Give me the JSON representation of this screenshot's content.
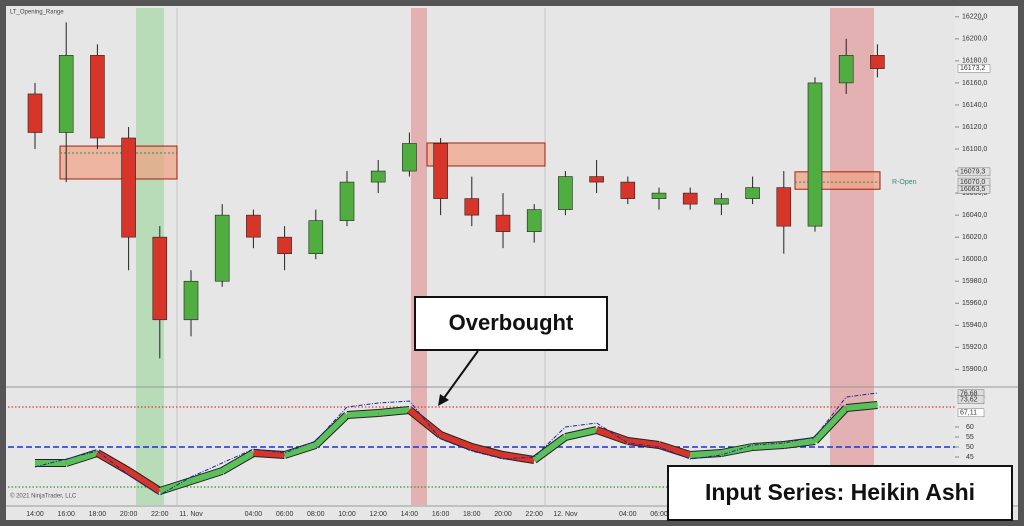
{
  "chart_data": [
    {
      "type": "candlestick",
      "title": "LT_Opening_Range",
      "categories": [
        "14:00",
        "16:00",
        "18:00",
        "20:00",
        "22:00",
        "11. Nov",
        null,
        "04:00",
        "06:00",
        "08:00",
        "10:00",
        "12:00",
        "14:00",
        "16:00",
        "18:00",
        "20:00",
        "22:00",
        "12. Nov",
        null,
        "04:00",
        "06:00",
        "08:00",
        null,
        null,
        null,
        null,
        null,
        null
      ],
      "open": [
        16150,
        16115,
        16185,
        16110,
        16020,
        15945,
        15980,
        16040,
        16020,
        16005,
        16035,
        16070,
        16080,
        16105,
        16055,
        16040,
        16025,
        16045,
        16075,
        16070,
        16055,
        16060,
        16050,
        16055,
        16065,
        16030,
        16160,
        16185
      ],
      "high": [
        16160,
        16215,
        16195,
        16120,
        16030,
        15990,
        16050,
        16045,
        16030,
        16045,
        16080,
        16090,
        16115,
        16110,
        16075,
        16060,
        16050,
        16080,
        16090,
        16075,
        16065,
        16065,
        16060,
        16075,
        16080,
        16165,
        16200,
        16195
      ],
      "low": [
        16100,
        16070,
        16100,
        15990,
        15910,
        15930,
        15975,
        16010,
        15990,
        16000,
        16030,
        16060,
        16075,
        16040,
        16030,
        16010,
        16015,
        16040,
        16060,
        16050,
        16045,
        16045,
        16040,
        16050,
        16005,
        16025,
        16150,
        16165
      ],
      "close": [
        16115,
        16185,
        16110,
        16020,
        15945,
        15980,
        16040,
        16020,
        16005,
        16035,
        16070,
        16080,
        16105,
        16055,
        16040,
        16025,
        16045,
        16075,
        16070,
        16055,
        16060,
        16050,
        16055,
        16065,
        16030,
        16160,
        16185,
        16173
      ],
      "up_color": "#4fae3f",
      "down_color": "#d8352a",
      "ylim": [
        15884,
        16228
      ],
      "yticks": [
        {
          "value": 15900,
          "label": "15900,0"
        },
        {
          "value": 15920,
          "label": "15920,0"
        },
        {
          "value": 15940,
          "label": "15940,0"
        },
        {
          "value": 15960,
          "label": "15960,0"
        },
        {
          "value": 15980,
          "label": "15980,0"
        },
        {
          "value": 16000,
          "label": "16000,0"
        },
        {
          "value": 16020,
          "label": "16020,0"
        },
        {
          "value": 16040,
          "label": "16040,0"
        },
        {
          "value": 16060,
          "label": "16060,0"
        },
        {
          "value": 16080,
          "label": "16080,0"
        },
        {
          "value": 16100,
          "label": "16100,0"
        },
        {
          "value": 16120,
          "label": "16120,0"
        },
        {
          "value": 16140,
          "label": "16140,0"
        },
        {
          "value": 16160,
          "label": "16160,0"
        },
        {
          "value": 16180,
          "label": "16180,0"
        },
        {
          "value": 16200,
          "label": "16200,0"
        },
        {
          "value": 16220,
          "label": "16220,0"
        }
      ],
      "price_tags": [
        {
          "value": 16173.2,
          "label": "16173,2"
        },
        {
          "value": 16079.3,
          "label": "16079,3"
        },
        {
          "value": 16070.0,
          "label": "16070,0"
        },
        {
          "value": 16063.5,
          "label": "16063,5"
        }
      ],
      "ranges": [
        {
          "high": 16102.7,
          "low": 16072.8,
          "mid": 16096.4
        },
        {
          "high": 16105.5,
          "low": 16084.6
        },
        {
          "high": 16079.3,
          "low": 16063.5,
          "mid": 16070.0
        }
      ],
      "range_label": "R-Open"
    },
    {
      "type": "line",
      "values": [
        42,
        42,
        47,
        38,
        28,
        33,
        38,
        47,
        46,
        51,
        66,
        67,
        68.5,
        56,
        50,
        46,
        43.5,
        55,
        58.5,
        53,
        51,
        46,
        47,
        50,
        51,
        53,
        69.5,
        71
      ],
      "signal_values": [
        40,
        44,
        48,
        36,
        26,
        35,
        42,
        49,
        47,
        53,
        70,
        72,
        73,
        54,
        48,
        44,
        45,
        60,
        62,
        52,
        50,
        44,
        46,
        51,
        52,
        55,
        75,
        77
      ],
      "up_color": "#5cc05a",
      "down_color": "#d8352a",
      "signal_color": "#1a2a9a",
      "levels": [
        {
          "value": 70,
          "color": "#e33"
        },
        {
          "value": 50,
          "color": "#1833d8"
        },
        {
          "value": 30,
          "color": "#2a9a2a"
        }
      ],
      "ylim": [
        23.5,
        79.5
      ],
      "yticks": [
        45,
        50,
        55,
        60
      ],
      "value_tags": [
        {
          "value": 76.68,
          "label": "76,68"
        },
        {
          "value": 73.62,
          "label": "73,62"
        },
        {
          "value": 67.11,
          "label": "67,11"
        }
      ]
    }
  ],
  "annotations": {
    "callout": "Overbought",
    "caption": "Input Series: Heikin Ashi",
    "copyright": "© 2021 NinjaTrader, LLC",
    "corner_icon": "→"
  }
}
